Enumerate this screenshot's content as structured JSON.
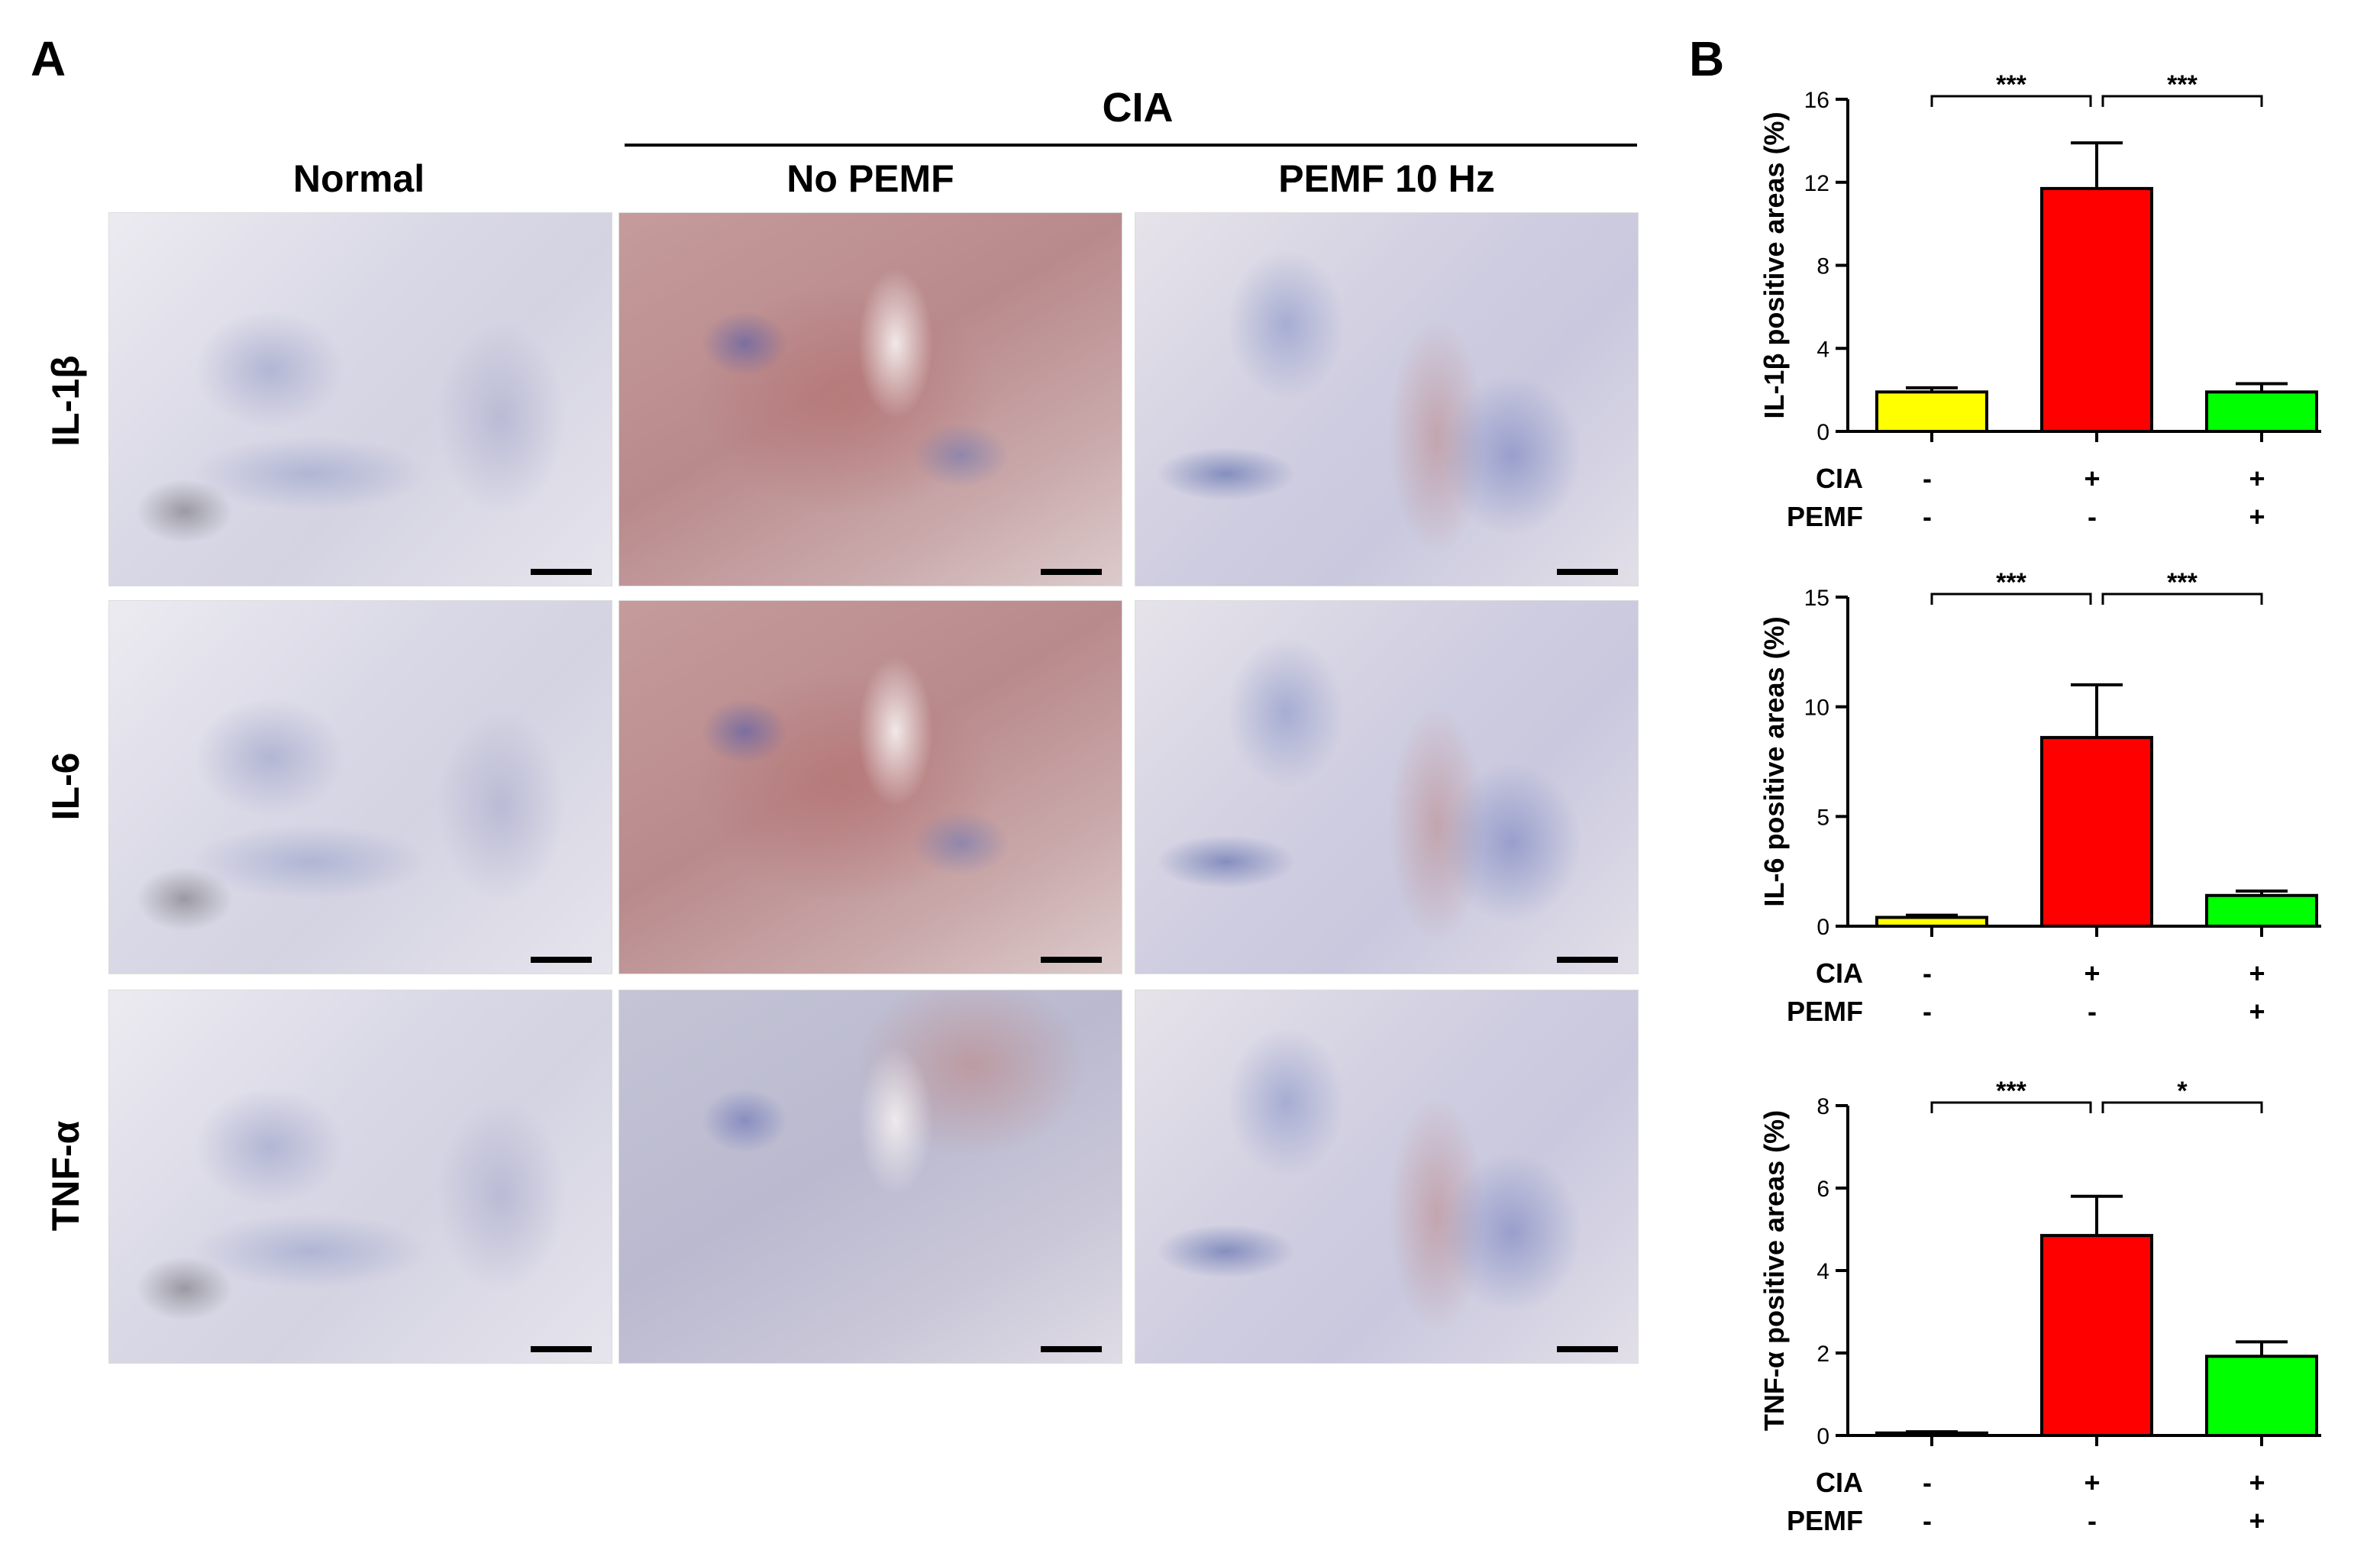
{
  "panels": {
    "a_label": "A",
    "b_label": "B"
  },
  "panel_a": {
    "group_label": "CIA",
    "columns": [
      "Normal",
      "No PEMF",
      "PEMF 10 Hz"
    ],
    "rows": [
      "IL-1β",
      "IL-6",
      "TNF-α"
    ]
  },
  "chart_data": [
    {
      "type": "bar",
      "categories": [
        "Normal",
        "No PEMF",
        "PEMF 10 Hz"
      ],
      "values": [
        1.9,
        11.7,
        1.9
      ],
      "errors": [
        0.2,
        2.2,
        0.4
      ],
      "colors": [
        "#ffff00",
        "#ff0000",
        "#00ff00"
      ],
      "ylabel": "IL-1β positive areas (%)",
      "ylim": [
        0,
        16
      ],
      "yticks": [
        "0",
        "4",
        "8",
        "12",
        "16"
      ],
      "significance": [
        {
          "from": 0,
          "to": 1,
          "label": "***"
        },
        {
          "from": 1,
          "to": 2,
          "label": "***"
        }
      ],
      "condition_rows": [
        {
          "name": "CIA",
          "values": [
            "-",
            "+",
            "+"
          ]
        },
        {
          "name": "PEMF",
          "values": [
            "-",
            "-",
            "+"
          ]
        }
      ]
    },
    {
      "type": "bar",
      "categories": [
        "Normal",
        "No PEMF",
        "PEMF 10 Hz"
      ],
      "values": [
        0.4,
        8.6,
        1.4
      ],
      "errors": [
        0.1,
        2.4,
        0.2
      ],
      "colors": [
        "#ffff00",
        "#ff0000",
        "#00ff00"
      ],
      "ylabel": "IL-6 positive areas (%)",
      "ylim": [
        0,
        15
      ],
      "yticks": [
        "0",
        "5",
        "10",
        "15"
      ],
      "significance": [
        {
          "from": 0,
          "to": 1,
          "label": "***"
        },
        {
          "from": 1,
          "to": 2,
          "label": "***"
        }
      ],
      "condition_rows": [
        {
          "name": "CIA",
          "values": [
            "-",
            "+",
            "+"
          ]
        },
        {
          "name": "PEMF",
          "values": [
            "-",
            "-",
            "+"
          ]
        }
      ]
    },
    {
      "type": "bar",
      "categories": [
        "Normal",
        "No PEMF",
        "PEMF 10 Hz"
      ],
      "values": [
        0.06,
        4.85,
        1.92
      ],
      "errors": [
        0.03,
        0.95,
        0.35
      ],
      "colors": [
        "#ffff00",
        "#ff0000",
        "#00ff00"
      ],
      "ylabel": "TNF-α positive areas (%)",
      "ylim": [
        0,
        8
      ],
      "yticks": [
        "0",
        "2",
        "4",
        "6",
        "8"
      ],
      "significance": [
        {
          "from": 0,
          "to": 1,
          "label": "***"
        },
        {
          "from": 1,
          "to": 2,
          "label": "*"
        }
      ],
      "condition_rows": [
        {
          "name": "CIA",
          "values": [
            "-",
            "+",
            "+"
          ]
        },
        {
          "name": "PEMF",
          "values": [
            "-",
            "-",
            "+"
          ]
        }
      ]
    }
  ]
}
